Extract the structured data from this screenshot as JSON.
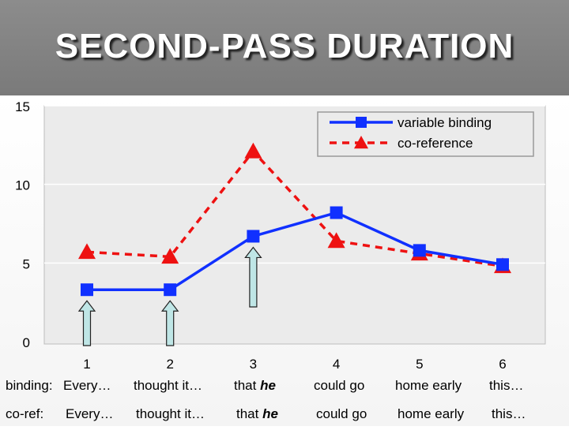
{
  "title": "SECOND-PASS DURATION",
  "chart_data": {
    "type": "line",
    "x": [
      1,
      2,
      3,
      4,
      5,
      6
    ],
    "series": [
      {
        "name": "variable binding",
        "values": [
          3.3,
          3.3,
          6.7,
          8.2,
          5.8,
          4.9
        ],
        "color": "#1030ff",
        "marker": "square",
        "dash": "solid"
      },
      {
        "name": "co-reference",
        "values": [
          5.7,
          5.4,
          12.1,
          6.4,
          5.6,
          4.8
        ],
        "color": "#ee1111",
        "marker": "triangle",
        "dash": "dashed"
      }
    ],
    "ylim": [
      0,
      15
    ],
    "yticks": [
      0,
      5,
      10,
      15
    ],
    "grid": true,
    "legend_position": "top-right",
    "arrows_at_x": [
      1,
      2,
      3
    ]
  },
  "rows": {
    "binding": {
      "label": "binding:",
      "words": [
        {
          "text": "Every…",
          "hl": ""
        },
        {
          "text": "thought it…",
          "hl": ""
        },
        {
          "text": "that ",
          "hl": "he"
        },
        {
          "text": "could go",
          "hl": ""
        },
        {
          "text": "home early",
          "hl": ""
        },
        {
          "text": "this…",
          "hl": ""
        }
      ]
    },
    "coref": {
      "label": "co-ref:",
      "words": [
        {
          "text": "Every…",
          "hl": ""
        },
        {
          "text": "thought it…",
          "hl": ""
        },
        {
          "text": "that ",
          "hl": "he"
        },
        {
          "text": "could go",
          "hl": ""
        },
        {
          "text": "home early",
          "hl": ""
        },
        {
          "text": "this…",
          "hl": ""
        }
      ]
    }
  }
}
